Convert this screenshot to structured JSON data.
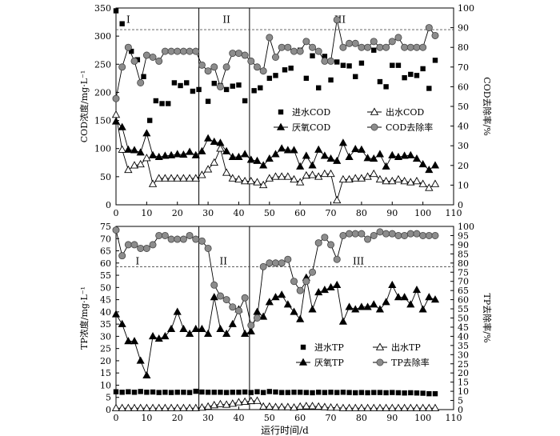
{
  "chart_data": [
    {
      "type": "scatter",
      "xlim": [
        0,
        110
      ],
      "xticks": [
        "0",
        "10",
        "20",
        "30",
        "40",
        "50",
        "60",
        "70",
        "80",
        "90",
        "100",
        "110"
      ],
      "ylabel": "COD浓度/mg·L⁻¹",
      "ylim": [
        0,
        350
      ],
      "yticks": [
        "0",
        "50",
        "100",
        "150",
        "200",
        "250",
        "300",
        "350"
      ],
      "y2label": "COD去除率/%",
      "y2lim": [
        0,
        100
      ],
      "y2ticks": [
        "0",
        "10",
        "20",
        "30",
        "40",
        "50",
        "60",
        "70",
        "80",
        "90",
        "100"
      ],
      "stage_lines_x": [
        27,
        43.5
      ],
      "reference_line_y2": 89,
      "stage_labels": [
        {
          "label": "I",
          "x": 4,
          "y": 324
        },
        {
          "label": "II",
          "x": 36,
          "y": 324
        },
        {
          "label": "III",
          "x": 73,
          "y": 324
        }
      ],
      "legend": {
        "placement": "center-left"
      },
      "series": [
        {
          "name": "进水COD",
          "marker": "filled-square",
          "axis": "left",
          "x": [
            0,
            2,
            5,
            7,
            9,
            11,
            13,
            15,
            17,
            19,
            21,
            23,
            25,
            27,
            30,
            32,
            34,
            36,
            38,
            40,
            42,
            45,
            47,
            50,
            52,
            55,
            57,
            60,
            62,
            64,
            66,
            68,
            70,
            72,
            74,
            76,
            78,
            80,
            82,
            84,
            86,
            88,
            90,
            92,
            94,
            96,
            98,
            100,
            102,
            104
          ],
          "y": [
            345,
            322,
            273,
            258,
            228,
            150,
            185,
            180,
            180,
            217,
            212,
            217,
            202,
            205,
            184,
            216,
            212,
            205,
            211,
            213,
            185,
            203,
            208,
            225,
            230,
            240,
            243,
            275,
            225,
            265,
            208,
            264,
            222,
            254,
            248,
            247,
            228,
            252,
            280,
            275,
            219,
            210,
            248,
            248,
            226,
            232,
            230,
            242,
            207,
            257
          ]
        },
        {
          "name": "出水COD",
          "marker": "open-triangle",
          "axis": "left",
          "x": [
            0,
            2,
            4,
            6,
            8,
            10,
            12,
            14,
            16,
            18,
            20,
            22,
            24,
            26,
            28,
            30,
            32,
            34,
            36,
            38,
            40,
            42,
            44,
            46,
            48,
            50,
            52,
            54,
            56,
            58,
            60,
            62,
            64,
            66,
            68,
            70,
            72,
            74,
            76,
            78,
            80,
            82,
            84,
            86,
            88,
            90,
            92,
            94,
            96,
            98,
            100,
            102,
            104
          ],
          "y": [
            160,
            98,
            62,
            70,
            72,
            83,
            37,
            47,
            47,
            47,
            47,
            47,
            47,
            47,
            53,
            63,
            75,
            100,
            57,
            47,
            45,
            42,
            42,
            40,
            35,
            47,
            50,
            50,
            50,
            45,
            40,
            52,
            53,
            50,
            55,
            55,
            8,
            45,
            45,
            47,
            47,
            50,
            55,
            45,
            42,
            42,
            45,
            42,
            40,
            42,
            37,
            30,
            37
          ]
        },
        {
          "name": "厌氧COD",
          "marker": "filled-triangle",
          "axis": "left",
          "x": [
            0,
            2,
            4,
            6,
            8,
            10,
            12,
            14,
            16,
            18,
            20,
            22,
            24,
            26,
            28,
            30,
            32,
            34,
            36,
            38,
            40,
            42,
            44,
            46,
            48,
            50,
            52,
            54,
            56,
            58,
            60,
            62,
            64,
            66,
            68,
            70,
            72,
            74,
            76,
            78,
            80,
            82,
            84,
            86,
            88,
            90,
            92,
            94,
            96,
            98,
            100,
            102,
            104
          ],
          "y": [
            148,
            138,
            98,
            97,
            93,
            127,
            88,
            85,
            87,
            88,
            90,
            89,
            94,
            88,
            95,
            118,
            112,
            110,
            95,
            85,
            85,
            90,
            80,
            78,
            70,
            82,
            90,
            100,
            97,
            97,
            68,
            87,
            70,
            98,
            87,
            82,
            78,
            110,
            85,
            99,
            98,
            83,
            82,
            90,
            68,
            88,
            85,
            87,
            88,
            82,
            72,
            62,
            70
          ]
        },
        {
          "name": "COD去除率",
          "marker": "gray-circle",
          "axis": "right",
          "x": [
            0,
            2,
            4,
            6,
            8,
            10,
            12,
            14,
            16,
            18,
            20,
            22,
            24,
            26,
            28,
            30,
            32,
            34,
            36,
            38,
            40,
            42,
            44,
            46,
            48,
            50,
            52,
            54,
            56,
            58,
            60,
            62,
            64,
            66,
            68,
            70,
            72,
            74,
            76,
            78,
            80,
            82,
            84,
            86,
            88,
            90,
            92,
            94,
            96,
            98,
            100,
            102,
            104
          ],
          "y": [
            54,
            70,
            80,
            73,
            62,
            76,
            75,
            73,
            78,
            78,
            78,
            78,
            78,
            78,
            71,
            68,
            70,
            60,
            70,
            77,
            77,
            76,
            73,
            70,
            68,
            85,
            75,
            80,
            80,
            78,
            78,
            83,
            80,
            78,
            73,
            73,
            94,
            80,
            82,
            82,
            80,
            80,
            83,
            80,
            80,
            83,
            85,
            80,
            80,
            80,
            80,
            90,
            86
          ]
        }
      ]
    },
    {
      "type": "scatter",
      "xlabel": "运行时间/d",
      "xlim": [
        0,
        110
      ],
      "xticks": [
        "0",
        "10",
        "20",
        "30",
        "40",
        "50",
        "60",
        "70",
        "80",
        "90",
        "100",
        "110"
      ],
      "ylabel": "TP浓度/mg·L⁻¹",
      "ylim": [
        0,
        75
      ],
      "yticks": [
        "0",
        "5",
        "10",
        "15",
        "20",
        "25",
        "30",
        "35",
        "40",
        "45",
        "50",
        "55",
        "60",
        "65",
        "70",
        "75"
      ],
      "y2label": "TP去除率/%",
      "y2lim": [
        0,
        100
      ],
      "y2ticks": [
        "0",
        "5",
        "10",
        "15",
        "20",
        "25",
        "30",
        "35",
        "40",
        "45",
        "50",
        "55",
        "60",
        "65",
        "70",
        "75",
        "80",
        "85",
        "90",
        "95",
        "100"
      ],
      "stage_lines_x": [
        27,
        43.5
      ],
      "reference_line_y2": 78,
      "stage_labels": [
        {
          "label": "I",
          "x": 7,
          "y": 59.5
        },
        {
          "label": "II",
          "x": 35,
          "y": 59.5
        },
        {
          "label": "III",
          "x": 79,
          "y": 59.5
        }
      ],
      "legend": {
        "placement": "bottom-center"
      },
      "series": [
        {
          "name": "进水TP",
          "marker": "filled-square",
          "axis": "left",
          "x": [
            0,
            2,
            4,
            6,
            8,
            10,
            12,
            14,
            16,
            18,
            20,
            22,
            24,
            26,
            28,
            30,
            32,
            34,
            36,
            38,
            40,
            42,
            44,
            46,
            48,
            50,
            52,
            54,
            56,
            58,
            60,
            62,
            64,
            66,
            68,
            70,
            72,
            74,
            76,
            78,
            80,
            82,
            84,
            86,
            88,
            90,
            92,
            94,
            96,
            98,
            100,
            102,
            104
          ],
          "y": [
            7.3,
            7.1,
            7.3,
            7.1,
            7.4,
            7.1,
            7.2,
            7.0,
            7.1,
            7.0,
            7.1,
            7.1,
            7.0,
            7.5,
            7.2,
            7.1,
            7.1,
            7.1,
            7.0,
            7.1,
            7.1,
            7.2,
            7.0,
            7.3,
            7.0,
            7.4,
            7.2,
            7.0,
            7.0,
            7.1,
            7.1,
            7.0,
            6.9,
            7.1,
            7.0,
            7.1,
            7.0,
            7.1,
            7.0,
            6.9,
            7.0,
            6.9,
            7.0,
            7.0,
            6.9,
            7.0,
            6.9,
            6.8,
            6.9,
            6.8,
            6.7,
            6.5,
            6.5
          ]
        },
        {
          "name": "出水TP",
          "marker": "open-triangle",
          "axis": "left",
          "x": [
            0,
            2,
            4,
            6,
            8,
            10,
            12,
            14,
            16,
            18,
            20,
            22,
            24,
            26,
            28,
            30,
            32,
            34,
            36,
            38,
            40,
            42,
            44,
            46,
            48,
            50,
            52,
            54,
            56,
            58,
            60,
            62,
            64,
            66,
            68,
            70,
            72,
            74,
            76,
            78,
            80,
            82,
            84,
            86,
            88,
            90,
            92,
            94,
            96,
            98,
            100,
            102,
            104
          ],
          "y": [
            0.6,
            0.6,
            0.6,
            0.6,
            0.6,
            0.6,
            0.6,
            0.6,
            0.6,
            0.6,
            0.6,
            0.6,
            0.6,
            0.6,
            0.8,
            1.2,
            1.8,
            2.2,
            2.0,
            2.4,
            3.0,
            3.2,
            3.5,
            3.6,
            1.2,
            1.2,
            1.0,
            1.0,
            1.0,
            0.8,
            1.2,
            1.4,
            1.4,
            1.2,
            1.0,
            0.8,
            0.8,
            0.6,
            0.6,
            0.6,
            0.6,
            0.6,
            0.6,
            0.6,
            0.6,
            0.6,
            0.6,
            0.6,
            0.6,
            0.6,
            0.6,
            0.6,
            0.6
          ]
        },
        {
          "name": "厌氧TP",
          "marker": "filled-triangle",
          "axis": "left",
          "x": [
            0,
            2,
            4,
            6,
            8,
            10,
            12,
            14,
            16,
            18,
            20,
            22,
            24,
            26,
            28,
            30,
            32,
            34,
            36,
            38,
            40,
            42,
            44,
            46,
            48,
            50,
            52,
            54,
            56,
            58,
            60,
            62,
            64,
            66,
            68,
            70,
            72,
            74,
            76,
            78,
            80,
            82,
            84,
            86,
            88,
            90,
            92,
            94,
            96,
            98,
            100,
            102,
            104
          ],
          "y": [
            39,
            35,
            28,
            28,
            20,
            14,
            30,
            29,
            30,
            33,
            40,
            33,
            31,
            33,
            33,
            31,
            46,
            33,
            31,
            35,
            41,
            31,
            32,
            40,
            38,
            44,
            46,
            47,
            43,
            40,
            37,
            54,
            41,
            48,
            49,
            50,
            51,
            36,
            42,
            41,
            42,
            42,
            43,
            41,
            44,
            51,
            46,
            46,
            43,
            49,
            41,
            46,
            45
          ]
        },
        {
          "name": "TP去除率",
          "marker": "gray-circle",
          "axis": "right",
          "x": [
            0,
            2,
            4,
            6,
            8,
            10,
            12,
            14,
            16,
            18,
            20,
            22,
            24,
            26,
            28,
            30,
            32,
            34,
            36,
            38,
            40,
            42,
            44,
            46,
            48,
            50,
            52,
            54,
            56,
            58,
            60,
            62,
            64,
            66,
            68,
            70,
            72,
            74,
            76,
            78,
            80,
            82,
            84,
            86,
            88,
            90,
            92,
            94,
            96,
            98,
            100,
            102,
            104
          ],
          "y": [
            98,
            84,
            90,
            90,
            88,
            88,
            90,
            95,
            95,
            93,
            93,
            93,
            95,
            93,
            92,
            88,
            68,
            62,
            60,
            56,
            54,
            61,
            46,
            50,
            78,
            80,
            80,
            80,
            82,
            70,
            65,
            70,
            75,
            91,
            94,
            90,
            82,
            95,
            96,
            96,
            96,
            93,
            95,
            97,
            96,
            96,
            95,
            95,
            96,
            96,
            95,
            95,
            95
          ]
        }
      ]
    }
  ]
}
